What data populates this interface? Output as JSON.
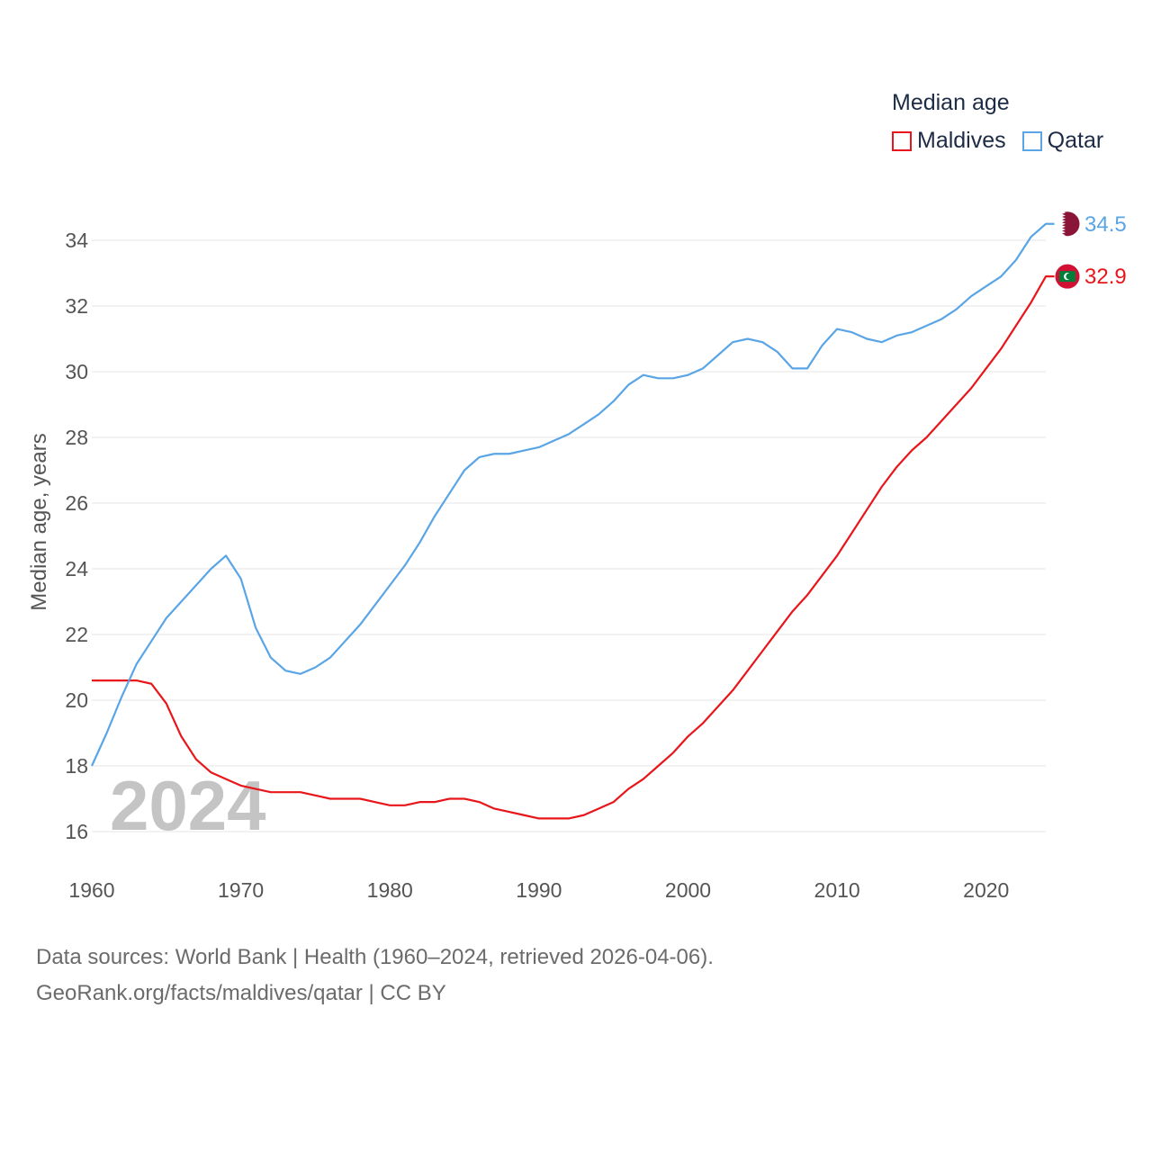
{
  "legend": {
    "title": "Median age",
    "items": [
      {
        "name": "Maldives",
        "color": "#e8161b"
      },
      {
        "name": "Qatar",
        "color": "#5aa5e6"
      }
    ]
  },
  "footer": {
    "line1": "Data sources: World Bank | Health (1960–2024, retrieved 2026-04-06).",
    "line2": "GeoRank.org/facts/maldives/qatar | CC BY"
  },
  "chart_data": {
    "type": "line",
    "title": "Median age",
    "xlabel": "",
    "ylabel": "Median age, years",
    "xlim": [
      1960,
      2024
    ],
    "ylim": [
      15,
      35.4
    ],
    "x_ticks": [
      1960,
      1970,
      1980,
      1990,
      2000,
      2010,
      2020
    ],
    "y_ticks": [
      16,
      18,
      20,
      22,
      24,
      26,
      28,
      30,
      32,
      34
    ],
    "watermark_year": "2024",
    "grid": true,
    "legend_position": "top-right",
    "x": [
      1960,
      1961,
      1962,
      1963,
      1964,
      1965,
      1966,
      1967,
      1968,
      1969,
      1970,
      1971,
      1972,
      1973,
      1974,
      1975,
      1976,
      1977,
      1978,
      1979,
      1980,
      1981,
      1982,
      1983,
      1984,
      1985,
      1986,
      1987,
      1988,
      1989,
      1990,
      1991,
      1992,
      1993,
      1994,
      1995,
      1996,
      1997,
      1998,
      1999,
      2000,
      2001,
      2002,
      2003,
      2004,
      2005,
      2006,
      2007,
      2008,
      2009,
      2010,
      2011,
      2012,
      2013,
      2014,
      2015,
      2016,
      2017,
      2018,
      2019,
      2020,
      2021,
      2022,
      2023,
      2024
    ],
    "series": [
      {
        "name": "Maldives",
        "color": "#e8161b",
        "end_label": "32.9",
        "flag": "maldives-flag",
        "values": [
          20.6,
          20.6,
          20.6,
          20.6,
          20.5,
          19.9,
          18.9,
          18.2,
          17.8,
          17.6,
          17.4,
          17.3,
          17.2,
          17.2,
          17.2,
          17.1,
          17.0,
          17.0,
          17.0,
          16.9,
          16.8,
          16.8,
          16.9,
          16.9,
          17.0,
          17.0,
          16.9,
          16.7,
          16.6,
          16.5,
          16.4,
          16.4,
          16.4,
          16.5,
          16.7,
          16.9,
          17.3,
          17.6,
          18.0,
          18.4,
          18.9,
          19.3,
          19.8,
          20.3,
          20.9,
          21.5,
          22.1,
          22.7,
          23.2,
          23.8,
          24.4,
          25.1,
          25.8,
          26.5,
          27.1,
          27.6,
          28.0,
          28.5,
          29.0,
          29.5,
          30.1,
          30.7,
          31.4,
          32.1,
          32.9
        ]
      },
      {
        "name": "Qatar",
        "color": "#5aa5e6",
        "end_label": "34.5",
        "flag": "qatar-flag",
        "values": [
          18.0,
          19.0,
          20.1,
          21.1,
          21.8,
          22.5,
          23.0,
          23.5,
          24.0,
          24.4,
          23.7,
          22.2,
          21.3,
          20.9,
          20.8,
          21.0,
          21.3,
          21.8,
          22.3,
          22.9,
          23.5,
          24.1,
          24.8,
          25.6,
          26.3,
          27.0,
          27.4,
          27.5,
          27.5,
          27.6,
          27.7,
          27.9,
          28.1,
          28.4,
          28.7,
          29.1,
          29.6,
          29.9,
          29.8,
          29.8,
          29.9,
          30.1,
          30.5,
          30.9,
          31.0,
          30.9,
          30.6,
          30.1,
          30.1,
          30.8,
          31.3,
          31.2,
          31.0,
          30.9,
          31.1,
          31.2,
          31.4,
          31.6,
          31.9,
          32.3,
          32.6,
          32.9,
          33.4,
          34.1,
          34.5
        ]
      }
    ]
  }
}
